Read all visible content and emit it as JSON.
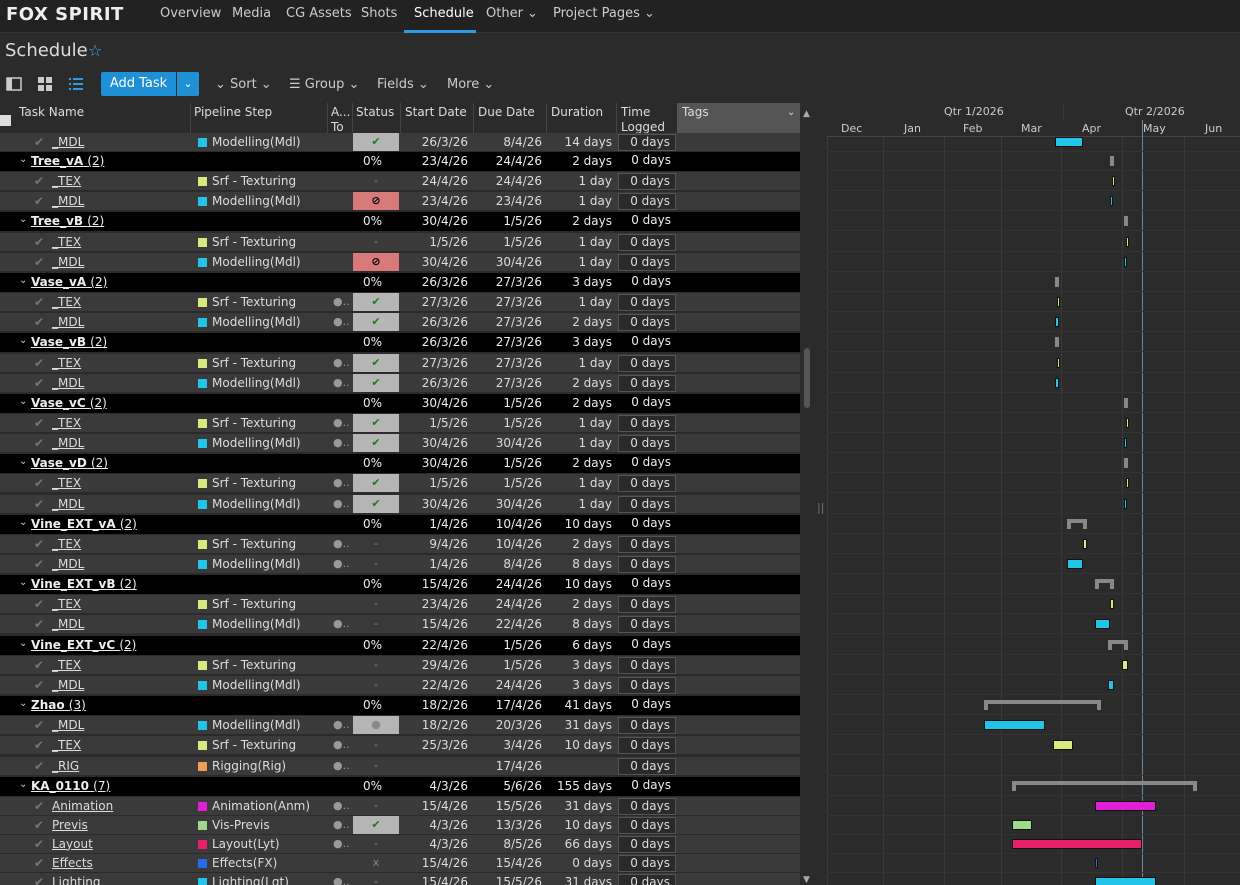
{
  "app": {
    "brand": "FOX SPIRIT"
  },
  "nav": [
    {
      "label": "Overview"
    },
    {
      "label": "Media"
    },
    {
      "label": "CG Assets"
    },
    {
      "label": "Shots"
    },
    {
      "label": "Schedule",
      "active": true
    },
    {
      "label": "Other ⌄"
    },
    {
      "label": "Project Pages ⌄"
    }
  ],
  "page": {
    "title": "Schedule",
    "star": "☆"
  },
  "toolbar": {
    "add_task": "Add Task",
    "add_caret": "⌄",
    "sort": "⌄ Sort ⌄",
    "group": "☰ Group ⌄",
    "fields": "Fields ⌄",
    "more": "More ⌄"
  },
  "columns": {
    "task_name": "Task Name",
    "pipeline_step": "Pipeline Step",
    "assigned": "A...",
    "assigned2": "To",
    "status": "Status",
    "start": "Start Date",
    "due": "Due Date",
    "duration": "Duration",
    "time_logged": "Time",
    "time_logged2": "Logged",
    "tags": "Tags"
  },
  "rows": [
    {
      "type": "task",
      "name": "_MDL",
      "step": "Modelling(Mdl)",
      "stepColor": "#22c5e8",
      "status": "done",
      "start": "26/3/26",
      "due": "8/4/26",
      "dur": "14 days",
      "log": "0 days",
      "partial": true
    },
    {
      "type": "group",
      "name": "Tree_vA",
      "count": "(2)",
      "pct": "0%",
      "start": "23/4/26",
      "due": "24/4/26",
      "dur": "2 days",
      "log": "0 days"
    },
    {
      "type": "task",
      "name": "_TEX",
      "step": "Srf - Texturing",
      "stepColor": "#d8ea7e",
      "status": "na",
      "start": "24/4/26",
      "due": "24/4/26",
      "dur": "1 day",
      "log": "0 days"
    },
    {
      "type": "task",
      "name": "_MDL",
      "step": "Modelling(Mdl)",
      "stepColor": "#22c5e8",
      "status": "blocked",
      "start": "23/4/26",
      "due": "23/4/26",
      "dur": "1 day",
      "log": "0 days"
    },
    {
      "type": "group",
      "name": "Tree_vB",
      "count": "(2)",
      "pct": "0%",
      "start": "30/4/26",
      "due": "1/5/26",
      "dur": "2 days",
      "log": "0 days"
    },
    {
      "type": "task",
      "name": "_TEX",
      "step": "Srf - Texturing",
      "stepColor": "#d8ea7e",
      "status": "na",
      "start": "1/5/26",
      "due": "1/5/26",
      "dur": "1 day",
      "log": "0 days"
    },
    {
      "type": "task",
      "name": "_MDL",
      "step": "Modelling(Mdl)",
      "stepColor": "#22c5e8",
      "status": "blocked",
      "start": "30/4/26",
      "due": "30/4/26",
      "dur": "1 day",
      "log": "0 days"
    },
    {
      "type": "group",
      "name": "Vase_vA",
      "count": "(2)",
      "pct": "0%",
      "start": "26/3/26",
      "due": "27/3/26",
      "dur": "3 days",
      "log": "0 days"
    },
    {
      "type": "task",
      "name": "_TEX",
      "step": "Srf - Texturing",
      "stepColor": "#d8ea7e",
      "status": "done",
      "assigned": true,
      "start": "27/3/26",
      "due": "27/3/26",
      "dur": "1 day",
      "log": "0 days"
    },
    {
      "type": "task",
      "name": "_MDL",
      "step": "Modelling(Mdl)",
      "stepColor": "#22c5e8",
      "status": "done",
      "assigned": true,
      "start": "26/3/26",
      "due": "27/3/26",
      "dur": "2 days",
      "log": "0 days"
    },
    {
      "type": "group",
      "name": "Vase_vB",
      "count": "(2)",
      "pct": "0%",
      "start": "26/3/26",
      "due": "27/3/26",
      "dur": "3 days",
      "log": "0 days"
    },
    {
      "type": "task",
      "name": "_TEX",
      "step": "Srf - Texturing",
      "stepColor": "#d8ea7e",
      "status": "done",
      "assigned": true,
      "start": "27/3/26",
      "due": "27/3/26",
      "dur": "1 day",
      "log": "0 days"
    },
    {
      "type": "task",
      "name": "_MDL",
      "step": "Modelling(Mdl)",
      "stepColor": "#22c5e8",
      "status": "done",
      "assigned": true,
      "start": "26/3/26",
      "due": "27/3/26",
      "dur": "2 days",
      "log": "0 days"
    },
    {
      "type": "group",
      "name": "Vase_vC",
      "count": "(2)",
      "pct": "0%",
      "start": "30/4/26",
      "due": "1/5/26",
      "dur": "2 days",
      "log": "0 days"
    },
    {
      "type": "task",
      "name": "_TEX",
      "step": "Srf - Texturing",
      "stepColor": "#d8ea7e",
      "status": "done",
      "assigned": true,
      "start": "1/5/26",
      "due": "1/5/26",
      "dur": "1 day",
      "log": "0 days"
    },
    {
      "type": "task",
      "name": "_MDL",
      "step": "Modelling(Mdl)",
      "stepColor": "#22c5e8",
      "status": "done",
      "assigned": true,
      "start": "30/4/26",
      "due": "30/4/26",
      "dur": "1 day",
      "log": "0 days"
    },
    {
      "type": "group",
      "name": "Vase_vD",
      "count": "(2)",
      "pct": "0%",
      "start": "30/4/26",
      "due": "1/5/26",
      "dur": "2 days",
      "log": "0 days"
    },
    {
      "type": "task",
      "name": "_TEX",
      "step": "Srf - Texturing",
      "stepColor": "#d8ea7e",
      "status": "done",
      "assigned": true,
      "start": "1/5/26",
      "due": "1/5/26",
      "dur": "1 day",
      "log": "0 days"
    },
    {
      "type": "task",
      "name": "_MDL",
      "step": "Modelling(Mdl)",
      "stepColor": "#22c5e8",
      "status": "done",
      "assigned": true,
      "start": "30/4/26",
      "due": "30/4/26",
      "dur": "1 day",
      "log": "0 days"
    },
    {
      "type": "group",
      "name": "Vine_EXT_vA",
      "count": "(2)",
      "pct": "0%",
      "start": "1/4/26",
      "due": "10/4/26",
      "dur": "10 days",
      "log": "0 days"
    },
    {
      "type": "task",
      "name": "_TEX",
      "step": "Srf - Texturing",
      "stepColor": "#d8ea7e",
      "status": "na",
      "assigned": true,
      "start": "9/4/26",
      "due": "10/4/26",
      "dur": "2 days",
      "log": "0 days"
    },
    {
      "type": "task",
      "name": "_MDL",
      "step": "Modelling(Mdl)",
      "stepColor": "#22c5e8",
      "status": "na",
      "assigned": true,
      "start": "1/4/26",
      "due": "8/4/26",
      "dur": "8 days",
      "log": "0 days"
    },
    {
      "type": "group",
      "name": "Vine_EXT_vB",
      "count": "(2)",
      "pct": "0%",
      "start": "15/4/26",
      "due": "24/4/26",
      "dur": "10 days",
      "log": "0 days"
    },
    {
      "type": "task",
      "name": "_TEX",
      "step": "Srf - Texturing",
      "stepColor": "#d8ea7e",
      "status": "na",
      "start": "23/4/26",
      "due": "24/4/26",
      "dur": "2 days",
      "log": "0 days"
    },
    {
      "type": "task",
      "name": "_MDL",
      "step": "Modelling(Mdl)",
      "stepColor": "#22c5e8",
      "status": "na",
      "assigned": true,
      "start": "15/4/26",
      "due": "22/4/26",
      "dur": "8 days",
      "log": "0 days"
    },
    {
      "type": "group",
      "name": "Vine_EXT_vC",
      "count": "(2)",
      "pct": "0%",
      "start": "22/4/26",
      "due": "1/5/26",
      "dur": "6 days",
      "log": "0 days"
    },
    {
      "type": "task",
      "name": "_TEX",
      "step": "Srf - Texturing",
      "stepColor": "#d8ea7e",
      "status": "na",
      "start": "29/4/26",
      "due": "1/5/26",
      "dur": "3 days",
      "log": "0 days"
    },
    {
      "type": "task",
      "name": "_MDL",
      "step": "Modelling(Mdl)",
      "stepColor": "#22c5e8",
      "status": "na",
      "start": "22/4/26",
      "due": "24/4/26",
      "dur": "3 days",
      "log": "0 days"
    },
    {
      "type": "group",
      "name": "Zhao",
      "count": "(3)",
      "pct": "0%",
      "start": "18/2/26",
      "due": "17/4/26",
      "dur": "41 days",
      "log": "0 days"
    },
    {
      "type": "task",
      "name": "_MDL",
      "step": "Modelling(Mdl)",
      "stepColor": "#22c5e8",
      "status": "ip",
      "assigned": true,
      "start": "18/2/26",
      "due": "20/3/26",
      "dur": "31 days",
      "log": "0 days"
    },
    {
      "type": "task",
      "name": "_TEX",
      "step": "Srf - Texturing",
      "stepColor": "#d8ea7e",
      "status": "na",
      "assigned": true,
      "start": "25/3/26",
      "due": "3/4/26",
      "dur": "10 days",
      "log": "0 days"
    },
    {
      "type": "task",
      "name": "_RIG",
      "step": "Rigging(Rig)",
      "stepColor": "#f0a050",
      "status": "na",
      "assigned": true,
      "start": "",
      "due": "17/4/26",
      "dur": "",
      "log": "0 days"
    },
    {
      "type": "group",
      "name": "KA_0110",
      "count": "(7)",
      "pct": "0%",
      "start": "4/3/26",
      "due": "5/6/26",
      "dur": "155 days",
      "log": "0 days"
    },
    {
      "type": "task",
      "name": "Animation",
      "step": "Animation(Anm)",
      "stepColor": "#e020d8",
      "status": "na",
      "assigned": true,
      "start": "15/4/26",
      "due": "15/5/26",
      "dur": "31 days",
      "log": "0 days"
    },
    {
      "type": "task",
      "name": "Previs",
      "step": "Vis-Previs",
      "stepColor": "#9ed88a",
      "status": "done",
      "assigned": true,
      "start": "4/3/26",
      "due": "13/3/26",
      "dur": "10 days",
      "log": "0 days"
    },
    {
      "type": "task",
      "name": "Layout",
      "step": "Layout(Lyt)",
      "stepColor": "#e8206a",
      "status": "na",
      "assigned": true,
      "start": "4/3/26",
      "due": "8/5/26",
      "dur": "66 days",
      "log": "0 days"
    },
    {
      "type": "task",
      "name": "Effects",
      "step": "Effects(FX)",
      "stepColor": "#2a6ae8",
      "status": "x",
      "start": "15/4/26",
      "due": "15/4/26",
      "dur": "0 days",
      "log": "0 days"
    },
    {
      "type": "task",
      "name": "Lighting",
      "step": "Lighting(Lgt)",
      "stepColor": "#22c5e8",
      "status": "na",
      "assigned": true,
      "start": "15/4/26",
      "due": "15/5/26",
      "dur": "31 days",
      "log": "0 days"
    }
  ],
  "gantt": {
    "quarters": [
      "Qtr 1/2026",
      "Qtr 2/2026"
    ],
    "months": [
      "Dec",
      "Jan",
      "Feb",
      "Mar",
      "Apr",
      "May",
      "Jun"
    ]
  },
  "symbols": {
    "check": "✔",
    "chev": "⌄",
    "done": "✔",
    "blocked": "⊘",
    "na": "-",
    "ip": "●",
    "x": "x",
    "person": "👤",
    "splitter": "||"
  }
}
